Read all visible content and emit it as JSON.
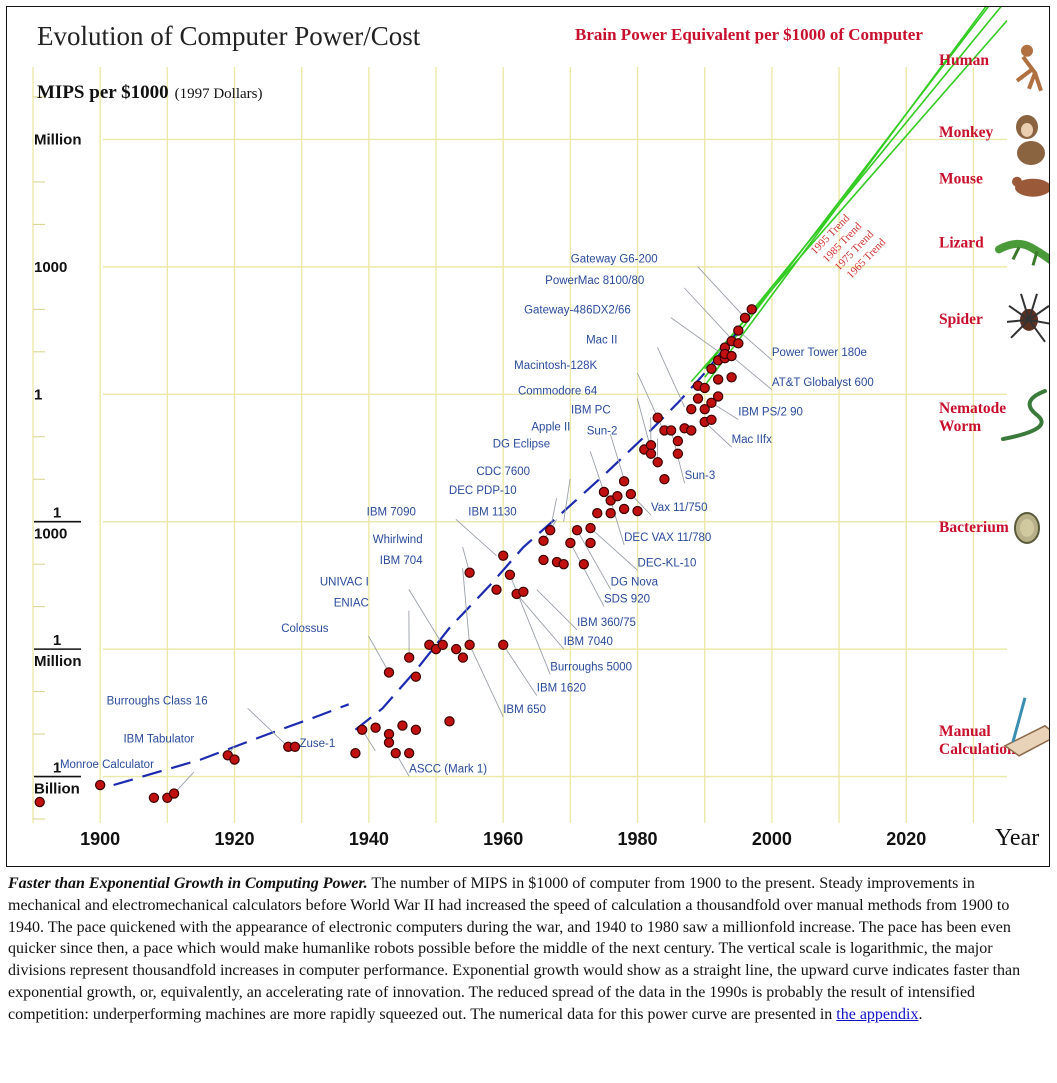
{
  "chart_data": {
    "type": "scatter",
    "title": "Evolution of Computer Power/Cost",
    "ylabel_main": "MIPS per $1000",
    "ylabel_note": "(1997 Dollars)",
    "xlabel": "Year",
    "xlim": [
      1890,
      2035
    ],
    "ylim_log10": [
      -10,
      7
    ],
    "x_ticks": [
      "1900",
      "1920",
      "1940",
      "1960",
      "1980",
      "2000",
      "2020"
    ],
    "y_ticks": [
      {
        "log": 6,
        "top": "Million",
        "bottom": ""
      },
      {
        "log": 3,
        "top": "1000",
        "bottom": ""
      },
      {
        "log": 0,
        "top": "1",
        "bottom": ""
      },
      {
        "log": -3,
        "top": "1",
        "bottom": "1000"
      },
      {
        "log": -6,
        "top": "1",
        "bottom": "Million"
      },
      {
        "log": -9,
        "top": "1",
        "bottom": "Billion"
      }
    ],
    "points": [
      [
        1891,
        -9.6
      ],
      [
        1900,
        -9.2
      ],
      [
        1908,
        -9.5
      ],
      [
        1910,
        -9.5
      ],
      [
        1911,
        -9.4
      ],
      [
        1919,
        -8.5
      ],
      [
        1920,
        -8.6
      ],
      [
        1928,
        -8.3
      ],
      [
        1929,
        -8.3
      ],
      [
        1938,
        -8.45
      ],
      [
        1939,
        -7.9
      ],
      [
        1941,
        -7.85
      ],
      [
        1943,
        -8.0
      ],
      [
        1943,
        -8.2
      ],
      [
        1944,
        -8.45
      ],
      [
        1945,
        -7.8
      ],
      [
        1946,
        -8.45
      ],
      [
        1947,
        -7.9
      ],
      [
        1943,
        -6.55
      ],
      [
        1946,
        -6.2
      ],
      [
        1947,
        -6.65
      ],
      [
        1949,
        -5.9
      ],
      [
        1950,
        -6.0
      ],
      [
        1951,
        -5.9
      ],
      [
        1952,
        -7.7
      ],
      [
        1953,
        -6.0
      ],
      [
        1954,
        -6.2
      ],
      [
        1955,
        -5.9
      ],
      [
        1955,
        -4.2
      ],
      [
        1959,
        -4.6
      ],
      [
        1960,
        -5.9
      ],
      [
        1960,
        -3.8
      ],
      [
        1961,
        -4.25
      ],
      [
        1962,
        -4.7
      ],
      [
        1963,
        -4.65
      ],
      [
        1966,
        -3.45
      ],
      [
        1966,
        -3.9
      ],
      [
        1967,
        -3.2
      ],
      [
        1968,
        -3.95
      ],
      [
        1969,
        -4.0
      ],
      [
        1970,
        -3.5
      ],
      [
        1971,
        -3.2
      ],
      [
        1972,
        -4.0
      ],
      [
        1973,
        -3.5
      ],
      [
        1973,
        -3.15
      ],
      [
        1974,
        -2.8
      ],
      [
        1975,
        -2.3
      ],
      [
        1976,
        -2.5
      ],
      [
        1976,
        -2.8
      ],
      [
        1977,
        -2.4
      ],
      [
        1978,
        -2.7
      ],
      [
        1978,
        -2.05
      ],
      [
        1979,
        -2.35
      ],
      [
        1980,
        -2.75
      ],
      [
        1981,
        -1.3
      ],
      [
        1982,
        -1.2
      ],
      [
        1982,
        -1.4
      ],
      [
        1983,
        -0.55
      ],
      [
        1983,
        -1.6
      ],
      [
        1984,
        -0.85
      ],
      [
        1984,
        -2.0
      ],
      [
        1985,
        -0.85
      ],
      [
        1986,
        -1.1
      ],
      [
        1986,
        -1.4
      ],
      [
        1987,
        -0.8
      ],
      [
        1988,
        -0.85
      ],
      [
        1988,
        -0.35
      ],
      [
        1989,
        -0.1
      ],
      [
        1989,
        0.2
      ],
      [
        1990,
        -0.65
      ],
      [
        1990,
        -0.35
      ],
      [
        1990,
        0.15
      ],
      [
        1991,
        -0.2
      ],
      [
        1991,
        -0.6
      ],
      [
        1991,
        0.6
      ],
      [
        1992,
        0.8
      ],
      [
        1992,
        0.35
      ],
      [
        1992,
        -0.05
      ],
      [
        1993,
        0.85
      ],
      [
        1993,
        1.1
      ],
      [
        1993,
        0.95
      ],
      [
        1994,
        0.9
      ],
      [
        1994,
        1.25
      ],
      [
        1994,
        0.4
      ],
      [
        1995,
        1.5
      ],
      [
        1995,
        1.2
      ],
      [
        1996,
        1.8
      ],
      [
        1997,
        2.0
      ]
    ],
    "series": [
      {
        "name": "Early trend (dashed)",
        "style": "dashed",
        "values": [
          [
            1902,
            -9.2
          ],
          [
            1915,
            -8.6
          ],
          [
            1925,
            -8.0
          ],
          [
            1932,
            -7.6
          ],
          [
            1937,
            -7.3
          ]
        ]
      },
      {
        "name": "Electronic trend (dashed)",
        "style": "dashed",
        "values": [
          [
            1938,
            -7.9
          ],
          [
            1942,
            -7.4
          ],
          [
            1947,
            -6.5
          ],
          [
            1952,
            -5.5
          ],
          [
            1958,
            -4.5
          ],
          [
            1963,
            -3.6
          ],
          [
            1968,
            -2.9
          ],
          [
            1975,
            -1.9
          ],
          [
            1981,
            -1.0
          ],
          [
            1986,
            -0.2
          ],
          [
            1990,
            0.5
          ],
          [
            1995,
            1.5
          ]
        ]
      },
      {
        "name": "1995 Trend",
        "style": "green",
        "values": [
          [
            1990,
            0.2
          ],
          [
            2035,
            9.8
          ]
        ]
      },
      {
        "name": "1985 Trend",
        "style": "green",
        "values": [
          [
            1990,
            0.4
          ],
          [
            2035,
            9.7
          ]
        ]
      },
      {
        "name": "1975 Trend",
        "style": "green",
        "values": [
          [
            1990,
            0.6
          ],
          [
            2035,
            9.3
          ]
        ]
      },
      {
        "name": "1965 Trend",
        "style": "green",
        "values": [
          [
            1988,
            0.3
          ],
          [
            2035,
            8.8
          ]
        ]
      }
    ],
    "trend_labels": [
      "1995 Trend",
      "1985 Trend",
      "1975 Trend",
      "1965 Trend"
    ],
    "annotations": [
      {
        "text": "Gateway G6-200",
        "x": 1983,
        "y": 3.1,
        "to": [
          1996,
          1.8
        ]
      },
      {
        "text": "PowerMac 8100/80",
        "x": 1981,
        "y": 2.6,
        "to": [
          1994,
          1.3
        ]
      },
      {
        "text": "Gateway-486DX2/66",
        "x": 1979,
        "y": 1.9,
        "to": [
          1993,
          0.9
        ]
      },
      {
        "text": "Mac II",
        "x": 1977,
        "y": 1.2,
        "to": [
          1987,
          -0.3
        ]
      },
      {
        "text": "Macintosh-128K",
        "x": 1974,
        "y": 0.6,
        "to": [
          1984,
          -0.9
        ]
      },
      {
        "text": "Commodore 64",
        "x": 1974,
        "y": 0.0,
        "to": [
          1982,
          -1.3
        ]
      },
      {
        "text": "IBM PC",
        "x": 1976,
        "y": -0.45,
        "to": [
          1982,
          -1.4
        ]
      },
      {
        "text": "Apple II",
        "x": 1970,
        "y": -0.85,
        "to": [
          1978,
          -2.0
        ]
      },
      {
        "text": "Sun-2",
        "x": 1977,
        "y": -0.95,
        "to": [
          1983,
          -1.6
        ]
      },
      {
        "text": "DG Eclipse",
        "x": 1967,
        "y": -1.25,
        "to": [
          1975,
          -2.3
        ]
      },
      {
        "text": "CDC 7600",
        "x": 1964,
        "y": -1.9,
        "to": [
          1969,
          -3.0
        ]
      },
      {
        "text": "DEC PDP-10",
        "x": 1962,
        "y": -2.35,
        "to": [
          1967,
          -3.2
        ]
      },
      {
        "text": "IBM 7090",
        "x": 1947,
        "y": -2.85,
        "to": [
          1959,
          -3.8
        ]
      },
      {
        "text": "IBM 1130",
        "x": 1962,
        "y": -2.85,
        "to": [
          1966,
          -3.45
        ]
      },
      {
        "text": "Whirlwind",
        "x": 1948,
        "y": -3.5,
        "to": [
          1955,
          -4.2
        ]
      },
      {
        "text": "IBM 704",
        "x": 1948,
        "y": -4.0,
        "to": [
          1955,
          -5.9
        ]
      },
      {
        "text": "UNIVAC I",
        "x": 1940,
        "y": -4.5,
        "to": [
          1951,
          -5.9
        ]
      },
      {
        "text": "ENIAC",
        "x": 1940,
        "y": -5.0,
        "to": [
          1946,
          -6.2
        ]
      },
      {
        "text": "Colossus",
        "x": 1934,
        "y": -5.6,
        "to": [
          1943,
          -6.55
        ]
      },
      {
        "text": "Burroughs Class 16",
        "x": 1916,
        "y": -7.3,
        "to": [
          1928,
          -8.3
        ]
      },
      {
        "text": "IBM Tabulator",
        "x": 1914,
        "y": -8.2,
        "to": [
          1919,
          -8.5
        ]
      },
      {
        "text": "Monroe Calculator",
        "x": 1908,
        "y": -8.8,
        "to": [
          1911,
          -9.4
        ]
      },
      {
        "text": "Zuse-1",
        "x": 1935,
        "y": -8.3,
        "to": [
          1939,
          -7.9
        ]
      },
      {
        "text": "ASCC (Mark 1)",
        "x": 1946,
        "y": -8.9,
        "to": [
          1944,
          -8.45
        ]
      },
      {
        "text": "Power Tower 180e",
        "x": 2000,
        "y": 0.9,
        "to": [
          1995,
          1.5
        ]
      },
      {
        "text": "AT&T Globalyst 600",
        "x": 2000,
        "y": 0.2,
        "to": [
          1994,
          0.9
        ]
      },
      {
        "text": "IBM PS/2 90",
        "x": 1995,
        "y": -0.5,
        "to": [
          1991,
          -0.2
        ]
      },
      {
        "text": "Mac IIfx",
        "x": 1994,
        "y": -1.15,
        "to": [
          1990,
          -0.65
        ]
      },
      {
        "text": "Sun-3",
        "x": 1987,
        "y": -2.0,
        "to": [
          1985,
          -0.85
        ]
      },
      {
        "text": "Vax 11/750",
        "x": 1982,
        "y": -2.75,
        "to": [
          1979,
          -2.35
        ]
      },
      {
        "text": "DEC VAX 11/780",
        "x": 1978,
        "y": -3.45,
        "to": [
          1976,
          -2.5
        ]
      },
      {
        "text": "DEC-KL-10",
        "x": 1980,
        "y": -4.05,
        "to": [
          1973,
          -3.15
        ]
      },
      {
        "text": "DG Nova",
        "x": 1976,
        "y": -4.5,
        "to": [
          1971,
          -3.2
        ]
      },
      {
        "text": "SDS 920",
        "x": 1975,
        "y": -4.9,
        "to": [
          1970,
          -3.5
        ]
      },
      {
        "text": "IBM 360/75",
        "x": 1971,
        "y": -5.45,
        "to": [
          1965,
          -4.6
        ]
      },
      {
        "text": "IBM 7040",
        "x": 1969,
        "y": -5.9,
        "to": [
          1962,
          -4.7
        ]
      },
      {
        "text": "Burroughs 5000",
        "x": 1967,
        "y": -6.5,
        "to": [
          1961,
          -4.25
        ]
      },
      {
        "text": "IBM 1620",
        "x": 1965,
        "y": -7.0,
        "to": [
          1960,
          -5.9
        ]
      },
      {
        "text": "IBM 650",
        "x": 1960,
        "y": -7.5,
        "to": [
          1955,
          -5.9
        ]
      }
    ],
    "brain_scale_title": "Brain Power Equivalent per $1000 of Computer",
    "brain_scale": [
      {
        "label": "Human",
        "log": 7.9,
        "icon": "human-icon"
      },
      {
        "label": "Monkey",
        "log": 6.2,
        "icon": "monkey-icon"
      },
      {
        "label": "Mouse",
        "log": 5.1,
        "icon": "mouse-icon"
      },
      {
        "label": "Lizard",
        "log": 3.6,
        "icon": "lizard-icon"
      },
      {
        "label": "Spider",
        "log": 1.8,
        "icon": "spider-icon"
      },
      {
        "label": "Nematode\nWorm",
        "log": -0.3,
        "icon": "worm-icon"
      },
      {
        "label": "Bacterium",
        "log": -3.1,
        "icon": "bacterium-icon"
      },
      {
        "label": "Manual\nCalculation",
        "log": -7.9,
        "icon": "hand-writing-icon"
      }
    ],
    "colors": {
      "point": "#c01010",
      "dashed": "#1c2ab0",
      "trend": "#33cc22",
      "trend_label": "#d03030",
      "grid": "#ece9a8",
      "brain_title": "#c8102e",
      "annotation": "#2a4a9a"
    }
  },
  "caption": {
    "lead": "Faster than Exponential Growth in Computing Power.",
    "body": " The number of MIPS in $1000 of computer from 1900 to the present. Steady improvements in mechanical and electromechanical calculators before World War II had increased the speed of calculation a thousandfold over manual methods from 1900 to 1940. The pace quickened with the appearance of electronic computers during the war, and 1940 to 1980 saw a millionfold increase. The pace has been even quicker since then, a pace which would make humanlike robots possible before the middle of the next century. The vertical scale is logarithmic, the major divisions represent thousandfold increases in computer performance. Exponential growth would show as a straight line, the upward curve indicates faster than exponential growth, or, equivalently, an accelerating rate of innovation. The reduced spread of the data in the 1990s is probably the result of intensified competition: underperforming machines are more rapidly squeezed out. The numerical data for this power curve are presented in ",
    "link": "the appendix",
    "end": "."
  }
}
